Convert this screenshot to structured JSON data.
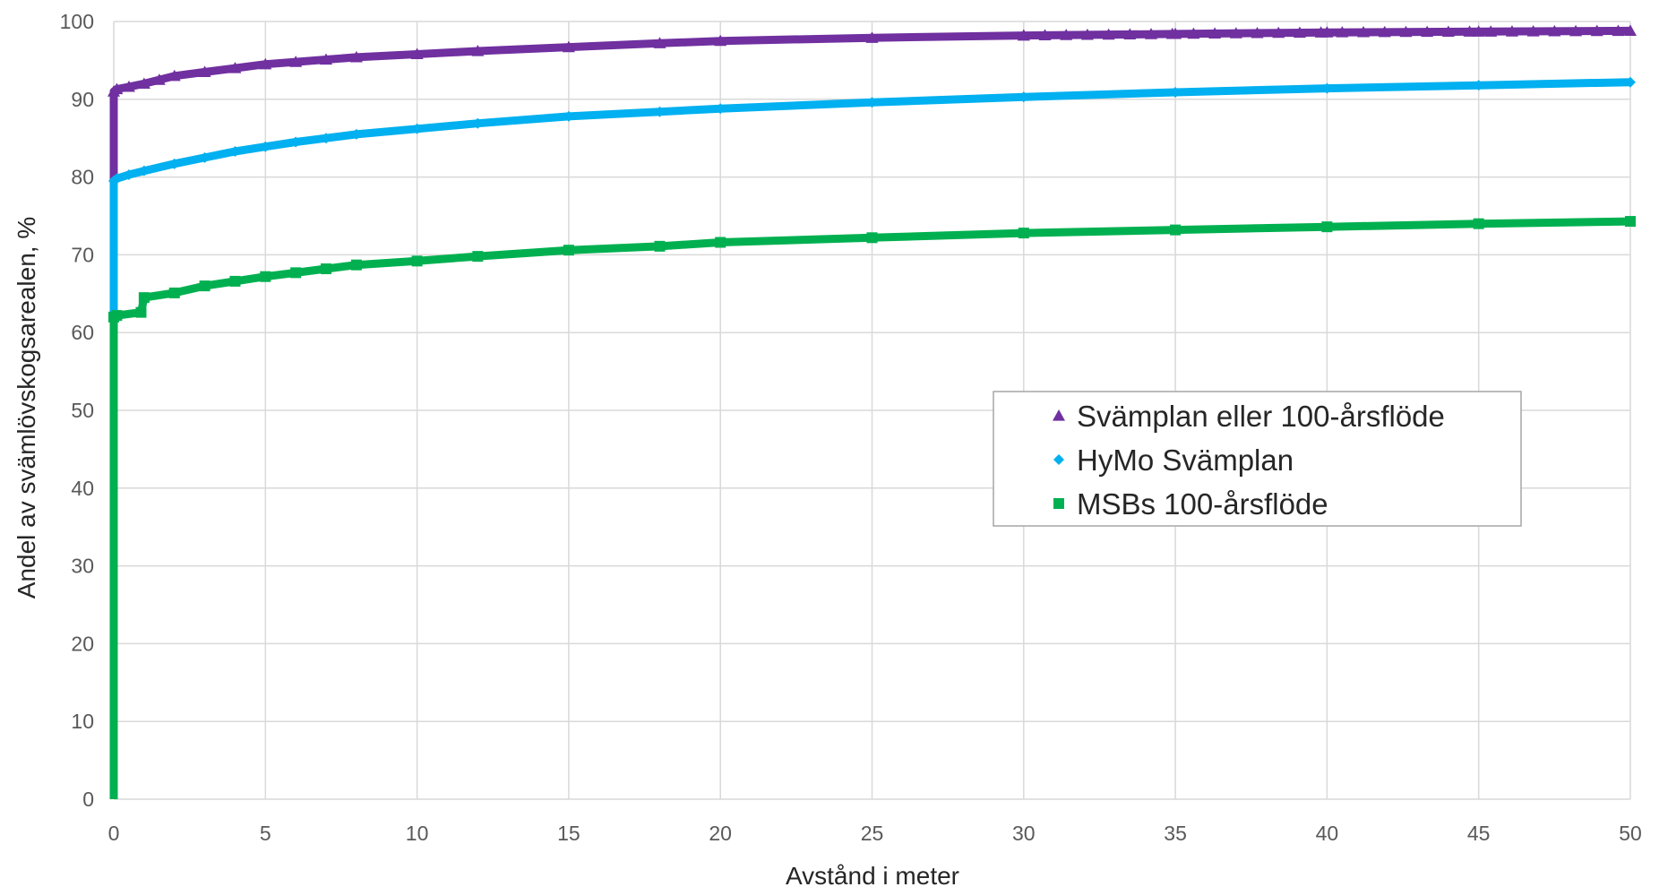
{
  "chart_data": {
    "type": "line",
    "title": "",
    "xlabel": "Avstånd i meter",
    "ylabel": "Andel av svämlövskogsarealen, %",
    "xlim": [
      0,
      50
    ],
    "ylim": [
      0,
      100
    ],
    "xticks": [
      0,
      5,
      10,
      15,
      20,
      25,
      30,
      35,
      40,
      45,
      50
    ],
    "yticks": [
      0,
      10,
      20,
      30,
      40,
      50,
      60,
      70,
      80,
      90,
      100
    ],
    "grid": true,
    "legend_position": "right-center",
    "series": [
      {
        "name": "Svämplan eller 100-årsflöde",
        "marker": "triangle",
        "color": "#7030A0",
        "x": [
          0,
          0,
          0.1,
          0.5,
          1,
          1.5,
          2,
          3,
          4,
          5,
          6,
          7,
          8,
          10,
          12,
          15,
          18,
          20,
          25,
          30,
          35,
          40,
          45,
          50
        ],
        "y": [
          0,
          91,
          91.3,
          91.6,
          92,
          92.5,
          93,
          93.5,
          94,
          94.5,
          94.8,
          95.1,
          95.4,
          95.8,
          96.2,
          96.7,
          97.2,
          97.5,
          97.9,
          98.2,
          98.4,
          98.6,
          98.7,
          98.8
        ]
      },
      {
        "name": "HyMo Svämplan",
        "marker": "diamond",
        "color": "#00B0F0",
        "x": [
          0,
          0,
          0.1,
          0.5,
          1,
          2,
          3,
          4,
          5,
          6,
          7,
          8,
          10,
          12,
          15,
          18,
          20,
          25,
          30,
          35,
          40,
          45,
          50
        ],
        "y": [
          62,
          79.5,
          79.8,
          80.3,
          80.8,
          81.7,
          82.5,
          83.3,
          83.9,
          84.5,
          85,
          85.5,
          86.2,
          86.9,
          87.8,
          88.4,
          88.8,
          89.6,
          90.3,
          90.9,
          91.4,
          91.8,
          92.2
        ]
      },
      {
        "name": "MSBs 100-årsflöde",
        "marker": "square",
        "color": "#00B050",
        "x": [
          0,
          0,
          0.1,
          0.9,
          1,
          2,
          3,
          4,
          5,
          6,
          7,
          8,
          10,
          12,
          15,
          18,
          20,
          25,
          30,
          35,
          40,
          45,
          50
        ],
        "y": [
          0,
          62,
          62.2,
          62.6,
          64.5,
          65.1,
          66,
          66.6,
          67.2,
          67.7,
          68.2,
          68.7,
          69.2,
          69.8,
          70.6,
          71.1,
          71.6,
          72.2,
          72.8,
          73.2,
          73.6,
          74,
          74.3
        ]
      }
    ]
  }
}
